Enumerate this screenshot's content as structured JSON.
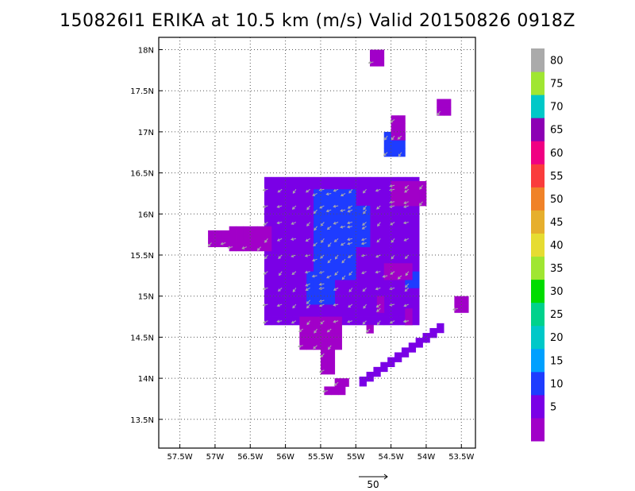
{
  "title": "150826I1 ERIKA at 10.5 km (m/s) Valid 20150826 0918Z",
  "chart_data": {
    "type": "heatmap",
    "title": "150826I1 ERIKA at 10.5 km (m/s) Valid 20150826 0918Z",
    "xlabel": "",
    "ylabel": "",
    "x_ticks": [
      "57.5W",
      "57W",
      "56.5W",
      "56W",
      "55.5W",
      "55W",
      "54.5W",
      "54W",
      "53.5W"
    ],
    "x_tick_values": [
      -57.5,
      -57.0,
      -56.5,
      -56.0,
      -55.5,
      -55.0,
      -54.5,
      -54.0,
      -53.5
    ],
    "y_ticks": [
      "13.5N",
      "14N",
      "14.5N",
      "15N",
      "15.5N",
      "16N",
      "16.5N",
      "17N",
      "17.5N",
      "18N"
    ],
    "y_tick_values": [
      13.5,
      14.0,
      14.5,
      15.0,
      15.5,
      16.0,
      16.5,
      17.0,
      17.5,
      18.0
    ],
    "xlim": [
      -57.8,
      -53.3
    ],
    "ylim": [
      13.15,
      18.15
    ],
    "grid": true,
    "colorbar": {
      "labels": [
        "5",
        "10",
        "15",
        "20",
        "25",
        "30",
        "35",
        "40",
        "45",
        "50",
        "55",
        "60",
        "65",
        "70",
        "75",
        "80"
      ],
      "bounds": [
        0,
        5,
        10,
        15,
        20,
        25,
        30,
        35,
        40,
        45,
        50,
        55,
        60,
        65,
        70,
        75,
        80,
        85
      ],
      "colors": [
        "#a100c8",
        "#7a00e6",
        "#1e3cff",
        "#00a0ff",
        "#00c8c8",
        "#00d28c",
        "#00dc00",
        "#a0e632",
        "#e6dc32",
        "#e6af2d",
        "#f08228",
        "#fa3c3c",
        "#f00082",
        "#8c00b4",
        "#00c8c8",
        "#a0e632",
        "#aaaaaa"
      ]
    },
    "cell_deg": 0.1,
    "regions": [
      {
        "lon": [
          -56.3,
          -54.1
        ],
        "lat": [
          14.65,
          16.45
        ],
        "speed": 6
      },
      {
        "lon": [
          -55.6,
          -55.0
        ],
        "lat": [
          15.2,
          16.3
        ],
        "speed": 11
      },
      {
        "lon": [
          -55.1,
          -54.8
        ],
        "lat": [
          15.6,
          16.1
        ],
        "speed": 11
      },
      {
        "lon": [
          -55.7,
          -55.3
        ],
        "lat": [
          14.9,
          15.3
        ],
        "speed": 11
      },
      {
        "lon": [
          -54.3,
          -54.1
        ],
        "lat": [
          15.1,
          15.3
        ],
        "speed": 11
      },
      {
        "lon": [
          -54.6,
          -54.3
        ],
        "lat": [
          16.7,
          17.0
        ],
        "speed": 11
      },
      {
        "lon": [
          -56.8,
          -56.2
        ],
        "lat": [
          15.55,
          15.8
        ],
        "speed": 4
      },
      {
        "lon": [
          -57.1,
          -56.8
        ],
        "lat": [
          15.6,
          15.75
        ],
        "speed": 4
      },
      {
        "lon": [
          -55.8,
          -55.2
        ],
        "lat": [
          14.35,
          14.7
        ],
        "speed": 4
      },
      {
        "lon": [
          -55.5,
          -55.3
        ],
        "lat": [
          14.05,
          14.4
        ],
        "speed": 4
      },
      {
        "lon": [
          -54.5,
          -54.0
        ],
        "lat": [
          16.1,
          16.4
        ],
        "speed": 4
      },
      {
        "lon": [
          -54.5,
          -54.3
        ],
        "lat": [
          16.9,
          17.2
        ],
        "speed": 4
      },
      {
        "lon": [
          -54.6,
          -54.2
        ],
        "lat": [
          15.2,
          15.35
        ],
        "speed": 4
      },
      {
        "lon": [
          -54.7,
          -54.6
        ],
        "lat": [
          14.8,
          14.95
        ],
        "speed": 4
      },
      {
        "lon": [
          -54.3,
          -54.2
        ],
        "lat": [
          14.65,
          14.8
        ],
        "speed": 4
      },
      {
        "lon": [
          -54.85,
          -54.75
        ],
        "lat": [
          14.55,
          14.65
        ],
        "speed": 4
      },
      {
        "lon": [
          -53.6,
          -53.45
        ],
        "lat": [
          14.8,
          14.95
        ],
        "speed": 4
      },
      {
        "lon": [
          -53.85,
          -53.7
        ],
        "lat": [
          17.2,
          17.35
        ],
        "speed": 4
      },
      {
        "lon": [
          -54.8,
          -54.65
        ],
        "lat": [
          17.8,
          17.95
        ],
        "speed": 4
      },
      {
        "lon": [
          -55.45,
          -55.2
        ],
        "lat": [
          13.8,
          13.9
        ],
        "speed": 4
      },
      {
        "lon": [
          -55.3,
          -55.15
        ],
        "lat": [
          13.9,
          14.0
        ],
        "speed": 4
      }
    ],
    "band": {
      "from": [
        -54.95,
        13.9
      ],
      "to": [
        -53.85,
        14.55
      ],
      "width_deg": 0.12,
      "speed": 5
    },
    "vectors": {
      "grid_deg": 0.1,
      "direction": "mostly southwest / west",
      "color": "#aaaaaa"
    },
    "legend_vector": {
      "label": "50",
      "value": 50
    }
  }
}
